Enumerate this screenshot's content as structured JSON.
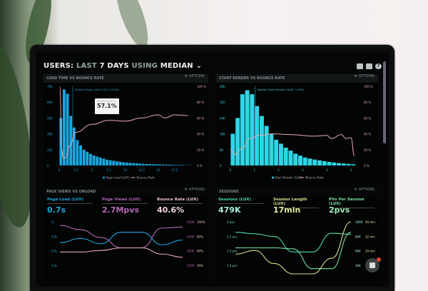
{
  "header": {
    "t1": "USERS:",
    "t2": "LAST",
    "t3": "7 DAYS",
    "t4": "USING",
    "t5": "MEDIAN",
    "icons": [
      "monitor-icon",
      "share-icon",
      "help-icon"
    ]
  },
  "options_label": "OPTIONS",
  "panels": {
    "load": {
      "title": "LOAD TIME VS BOUNCE RATE",
      "median": "Median Page Load (LUX): 2.056s",
      "tooltip_label": "Bounce Rate %",
      "tooltip_value": "57.1%",
      "legend": [
        "Page Load (LUX)",
        "Bounce Rate"
      ]
    },
    "render": {
      "title": "START RENDER VS BOUNCE RATE",
      "median": "Median Start Render (LUX): 1.031s",
      "legend": [
        "Start Render (LUX)",
        "Bounce Rate"
      ]
    },
    "pageviews": {
      "title": "PAGE VIEWS VS ONLOAD",
      "stats": [
        {
          "label": "Page Load (LUX)",
          "value": "0.7s"
        },
        {
          "label": "Page Views (LUX)",
          "value": "2.7Mpvs"
        },
        {
          "label": "Bounce Rate (LUX)",
          "value": "40.6%"
        }
      ]
    },
    "sessions": {
      "title": "SESSIONS",
      "stats": [
        {
          "label": "Sessions (LUX)",
          "value": "479K"
        },
        {
          "label": "Session Length (LUX)",
          "value": "17min"
        },
        {
          "label": "PVs Per Session (LUX)",
          "value": "2pvs"
        }
      ]
    }
  },
  "colors": {
    "blue": "#1aa7e0",
    "cyan": "#2fd6e6",
    "pink": "#e8a9b4",
    "purple": "#b567b6",
    "teal": "#4fd9b8",
    "yellow": "#d9e08a",
    "green": "#7be3a0"
  },
  "chart_data": [
    {
      "type": "bar",
      "name": "load",
      "x_ticks": [
        "0",
        "2.5",
        "5",
        "7.5",
        "10",
        "12.5",
        "15",
        "17.5"
      ],
      "y_ticks": [
        "75K",
        "60K",
        "45K",
        "30K",
        "15K",
        "0"
      ],
      "y2_ticks": [
        "100 %",
        "80 %",
        "60 %",
        "40 %",
        "20 %",
        "0 %"
      ],
      "xlim": [
        0,
        20
      ],
      "ylim": [
        0,
        75
      ],
      "bin": 0.5,
      "bars": [
        45,
        72,
        68,
        47,
        36,
        24,
        19,
        15,
        13,
        11,
        9.5,
        8.5,
        7.5,
        6.5,
        5.5,
        5,
        4.5,
        4,
        3.5,
        3,
        2.8,
        2.5,
        2.2,
        2,
        1.8,
        1.6,
        1.4,
        1.3,
        1.2,
        1.1,
        1,
        0.9,
        0.8,
        0.7,
        0.6,
        0.5,
        0.5,
        0.4,
        0.3,
        0.3
      ],
      "median": 2.056,
      "line": [
        [
          0.1,
          100
        ],
        [
          0.4,
          20
        ],
        [
          0.6,
          9
        ],
        [
          1,
          10
        ],
        [
          1.6,
          25
        ],
        [
          2.5,
          42
        ],
        [
          5,
          52
        ],
        [
          7.5,
          57
        ],
        [
          10,
          56
        ],
        [
          12.5,
          60
        ],
        [
          15,
          64
        ],
        [
          16,
          60
        ],
        [
          17.5,
          64
        ],
        [
          19.5,
          63
        ]
      ]
    },
    {
      "type": "bar",
      "name": "render",
      "x_ticks": [
        "0",
        "1",
        "2",
        "3",
        "4",
        "5"
      ],
      "y_ticks": [
        "40K",
        "32K",
        "24K",
        "16K",
        "8K",
        "0"
      ],
      "y2_ticks": [
        "100 %",
        "80 %",
        "60 %",
        "40 %",
        "20 %",
        "0 %"
      ],
      "xlim": [
        0,
        5.3
      ],
      "ylim": [
        0,
        40
      ],
      "bin": 0.2,
      "bars": [
        16,
        24,
        36,
        38,
        36,
        30,
        25,
        20,
        16,
        13,
        11,
        9,
        7.5,
        6,
        5,
        4,
        3.5,
        3,
        2.6,
        2.2,
        1.8,
        1.5,
        1.2,
        1,
        0.8,
        0.6
      ],
      "median": 1.031,
      "line": [
        [
          0,
          20
        ],
        [
          0.2,
          14
        ],
        [
          0.5,
          22
        ],
        [
          0.8,
          34
        ],
        [
          1.2,
          38
        ],
        [
          1.7,
          40
        ],
        [
          2.5,
          39
        ],
        [
          3.5,
          37
        ],
        [
          4,
          38
        ],
        [
          4.2,
          34
        ],
        [
          4.6,
          39
        ],
        [
          4.8,
          34
        ],
        [
          5,
          35
        ],
        [
          5.15,
          12
        ]
      ]
    },
    {
      "type": "line",
      "name": "pageviews",
      "y_ticks": [
        "%",
        "0.8s",
        "0.6s",
        "0.4s"
      ],
      "y2_ticks": [
        "500K",
        "400K",
        "300K",
        "200K"
      ],
      "y3_ticks": [
        "100%",
        "80%",
        "60%",
        "40%"
      ],
      "series": [
        {
          "color": "#1aa7e0",
          "values": [
            0.6,
            0.68,
            0.58,
            0.8,
            0.8,
            0.56,
            0.65
          ]
        },
        {
          "color": "#b567b6",
          "values": [
            0.93,
            0.85,
            0.7,
            0.5,
            0.5,
            0.88,
            0.9
          ]
        },
        {
          "color": "#e8a9b4",
          "values": [
            0.42,
            0.42,
            0.45,
            0.5,
            0.5,
            0.38,
            0.32
          ]
        }
      ]
    },
    {
      "type": "line",
      "name": "sessions",
      "y_ticks": [
        "4 pvs",
        "3.2 pvs",
        "2.4 pvs",
        "1.6 pvs"
      ],
      "y2_ticks": [
        "100K",
        "80K",
        "60K",
        "40K"
      ],
      "y3_ticks": [
        "40 min",
        "32 min",
        "24 min"
      ],
      "series": [
        {
          "color": "#4fd9b8",
          "values": [
            0.8,
            0.77,
            0.72,
            0.42,
            0.42,
            0.78,
            0.76
          ]
        },
        {
          "color": "#7be3a0",
          "values": [
            0.5,
            0.5,
            0.5,
            0.48,
            0.1,
            0.1,
            0.8
          ]
        },
        {
          "color": "#d9e08a",
          "values": [
            0.38,
            0.45,
            0.2,
            0.0,
            0.0,
            0.3,
            1.0
          ]
        }
      ]
    }
  ]
}
